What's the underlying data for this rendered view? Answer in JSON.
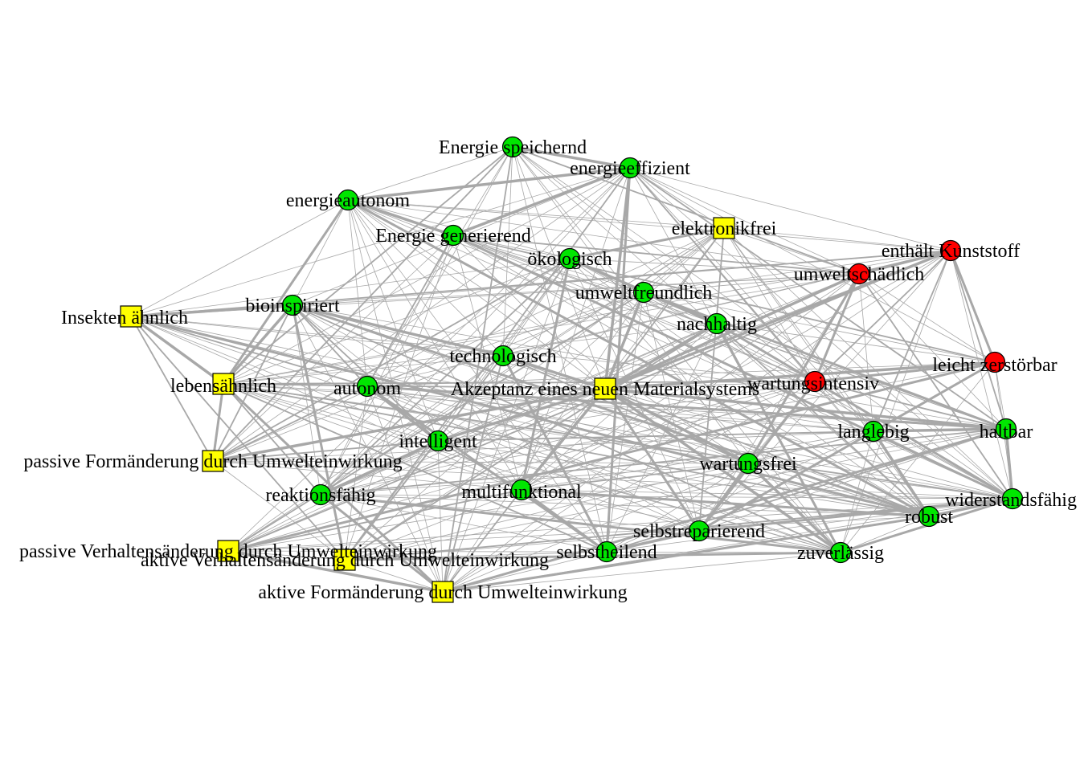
{
  "nodes": [
    {
      "id": "energie_speichernd",
      "label": "Energie  speichernd",
      "color": "green",
      "shape": "circle"
    },
    {
      "id": "energieeffizient",
      "label": "energieeffizient",
      "color": "green",
      "shape": "circle"
    },
    {
      "id": "energieautonom",
      "label": "energieautonom",
      "color": "green",
      "shape": "circle"
    },
    {
      "id": "energie_generierend",
      "label": "Energie  generierend",
      "color": "green",
      "shape": "circle"
    },
    {
      "id": "elektronikfrei",
      "label": "elektronikfrei",
      "color": "yellow",
      "shape": "square"
    },
    {
      "id": "enthaelt_kunststoff",
      "label": "enthält Kunststoff",
      "color": "red",
      "shape": "circle"
    },
    {
      "id": "oekologisch",
      "label": "ökologisch",
      "color": "green",
      "shape": "circle"
    },
    {
      "id": "umweltschaedlich",
      "label": "umweltschädlich",
      "color": "red",
      "shape": "circle"
    },
    {
      "id": "umweltfreundlich",
      "label": "umweltfreundlich",
      "color": "green",
      "shape": "circle"
    },
    {
      "id": "bioinspiriert",
      "label": "bioinspiriert",
      "color": "green",
      "shape": "circle"
    },
    {
      "id": "insektenaehnlich",
      "label": "Insekten ähnlich",
      "color": "yellow",
      "shape": "square"
    },
    {
      "id": "nachhaltig",
      "label": "nachhaltig",
      "color": "green",
      "shape": "circle"
    },
    {
      "id": "technologisch",
      "label": "technologisch",
      "color": "green",
      "shape": "circle"
    },
    {
      "id": "leicht_zerstoerbar",
      "label": "leicht zerstörbar",
      "color": "red",
      "shape": "circle"
    },
    {
      "id": "lebensaehnlich",
      "label": "lebensähnlich",
      "color": "yellow",
      "shape": "square"
    },
    {
      "id": "autonom",
      "label": "autonom",
      "color": "green",
      "shape": "circle"
    },
    {
      "id": "akzeptanz",
      "label": "Akzeptanz eines neuen Materialsystems",
      "color": "yellow",
      "shape": "square"
    },
    {
      "id": "wartungsintensiv",
      "label": "wartungsintensiv",
      "color": "red",
      "shape": "circle"
    },
    {
      "id": "langlebig",
      "label": "langlebig",
      "color": "green",
      "shape": "circle"
    },
    {
      "id": "haltbar",
      "label": "haltbar",
      "color": "green",
      "shape": "circle"
    },
    {
      "id": "intelligent",
      "label": "intelligent",
      "color": "green",
      "shape": "circle"
    },
    {
      "id": "passive_formaenderung",
      "label": "passive Formänderung durch Umwelteinwirkung",
      "color": "yellow",
      "shape": "square"
    },
    {
      "id": "wartungsfrei",
      "label": "wartungsfrei",
      "color": "green",
      "shape": "circle"
    },
    {
      "id": "multifunktional",
      "label": "multifunktional",
      "color": "green",
      "shape": "circle"
    },
    {
      "id": "reaktionsfaehig",
      "label": "reaktionsfähig",
      "color": "green",
      "shape": "circle"
    },
    {
      "id": "widerstandsfaehig",
      "label": "widerstandsfähig",
      "color": "green",
      "shape": "circle"
    },
    {
      "id": "robust",
      "label": "robust",
      "color": "green",
      "shape": "circle"
    },
    {
      "id": "selbstreparierend",
      "label": "selbstreparierend",
      "color": "green",
      "shape": "circle"
    },
    {
      "id": "passive_verhaltensaenderung",
      "label": "passive Verhaltensänderung durch Umwelteinwirkung",
      "color": "yellow",
      "shape": "square"
    },
    {
      "id": "selbstheilend",
      "label": "selbstheilend",
      "color": "green",
      "shape": "circle"
    },
    {
      "id": "zuverlaessig",
      "label": "zuverlässig",
      "color": "green",
      "shape": "circle"
    },
    {
      "id": "aktive_verhaltensaenderung",
      "label": "aktive Verhaltensänderung durch Umwelteinwirkung",
      "color": "yellow",
      "shape": "square"
    },
    {
      "id": "aktive_formaenderung",
      "label": "aktive Formänderung durch Umwelteinwirkung",
      "color": "yellow",
      "shape": "square"
    }
  ],
  "colors": {
    "green": "#00e600",
    "red": "#ff0000",
    "yellow": "#ffff00",
    "edge": "#a8a8a8"
  }
}
